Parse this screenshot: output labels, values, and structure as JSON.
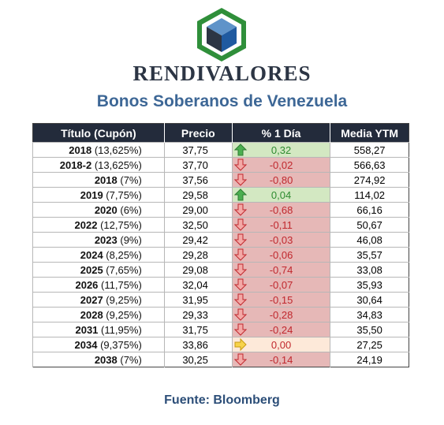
{
  "brand": "RENDIVALORES",
  "subtitle": "Bonos Soberanos de Venezuela",
  "headers": [
    "Título (Cupón)",
    "Precio",
    "% 1 Día",
    "Media YTM"
  ],
  "rows": [
    {
      "title": "2018",
      "coupon": "(13,625%)",
      "price": "37,75",
      "change": "0,32",
      "dir": "up",
      "ytm": "558,27"
    },
    {
      "title": "2018-2",
      "coupon": "(13,625%)",
      "price": "37,70",
      "change": "-0,02",
      "dir": "down",
      "ytm": "566,63"
    },
    {
      "title": "2018",
      "coupon": "(7%)",
      "price": "37,56",
      "change": "-0,80",
      "dir": "down",
      "ytm": "274,92"
    },
    {
      "title": "2019",
      "coupon": "(7,75%)",
      "price": "29,58",
      "change": "0,04",
      "dir": "up",
      "ytm": "114,02"
    },
    {
      "title": "2020",
      "coupon": "(6%)",
      "price": "29,00",
      "change": "-0,68",
      "dir": "down",
      "ytm": "66,16"
    },
    {
      "title": "2022",
      "coupon": "(12,75%)",
      "price": "32,50",
      "change": "-0,11",
      "dir": "down",
      "ytm": "50,67"
    },
    {
      "title": "2023",
      "coupon": "(9%)",
      "price": "29,42",
      "change": "-0,03",
      "dir": "down",
      "ytm": "46,08"
    },
    {
      "title": "2024",
      "coupon": "(8,25%)",
      "price": "29,28",
      "change": "-0,06",
      "dir": "down",
      "ytm": "35,57"
    },
    {
      "title": "2025",
      "coupon": "(7,65%)",
      "price": "29,08",
      "change": "-0,74",
      "dir": "down",
      "ytm": "33,08"
    },
    {
      "title": "2026",
      "coupon": "(11,75%)",
      "price": "32,04",
      "change": "-0,07",
      "dir": "down",
      "ytm": "35,93"
    },
    {
      "title": "2027",
      "coupon": "(9,25%)",
      "price": "31,95",
      "change": "-0,15",
      "dir": "down",
      "ytm": "30,64"
    },
    {
      "title": "2028",
      "coupon": "(9,25%)",
      "price": "29,33",
      "change": "-0,28",
      "dir": "down",
      "ytm": "34,83"
    },
    {
      "title": "2031",
      "coupon": "(11,95%)",
      "price": "31,75",
      "change": "-0,24",
      "dir": "down",
      "ytm": "35,50"
    },
    {
      "title": "2034",
      "coupon": "(9,375%)",
      "price": "33,86",
      "change": "0,00",
      "dir": "flat",
      "ytm": "27,25"
    },
    {
      "title": "2038",
      "coupon": "(7%)",
      "price": "30,25",
      "change": "-0,14",
      "dir": "down",
      "ytm": "24,19"
    }
  ],
  "icons": {
    "up": "green-up-arrow-icon",
    "down": "red-down-arrow-icon",
    "flat": "yellow-right-arrow-icon"
  },
  "colors": {
    "up": "#2e8b30",
    "down": "#c0282e",
    "flat": "#f2c12e",
    "header_bg": "#232b3b"
  },
  "source": "Fuente: Bloomberg"
}
